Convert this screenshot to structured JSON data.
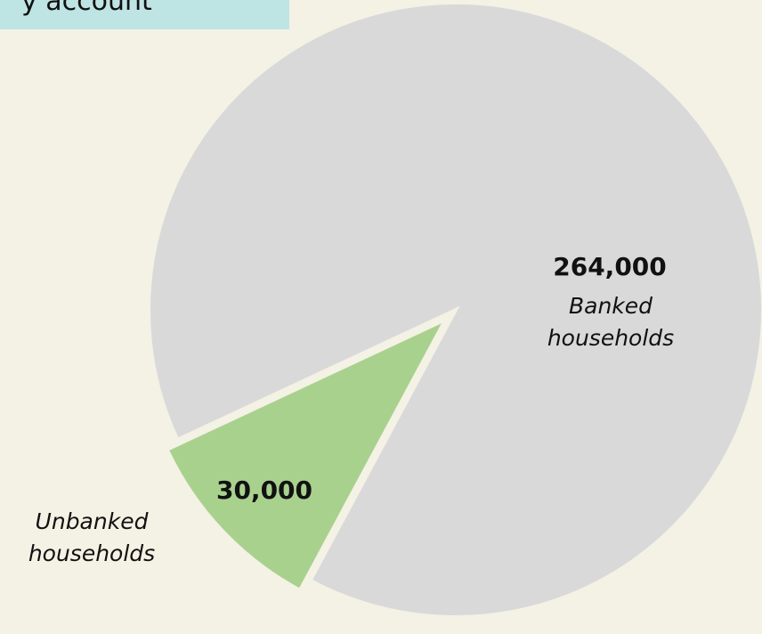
{
  "chart_data": {
    "type": "pie",
    "title": "y account",
    "categories": [
      "Banked households",
      "Unbanked households"
    ],
    "values": [
      264000,
      30000
    ],
    "value_labels": [
      "264,000",
      "30,000"
    ],
    "colors": [
      "#d9d9d9",
      "#a9d18e"
    ]
  }
}
